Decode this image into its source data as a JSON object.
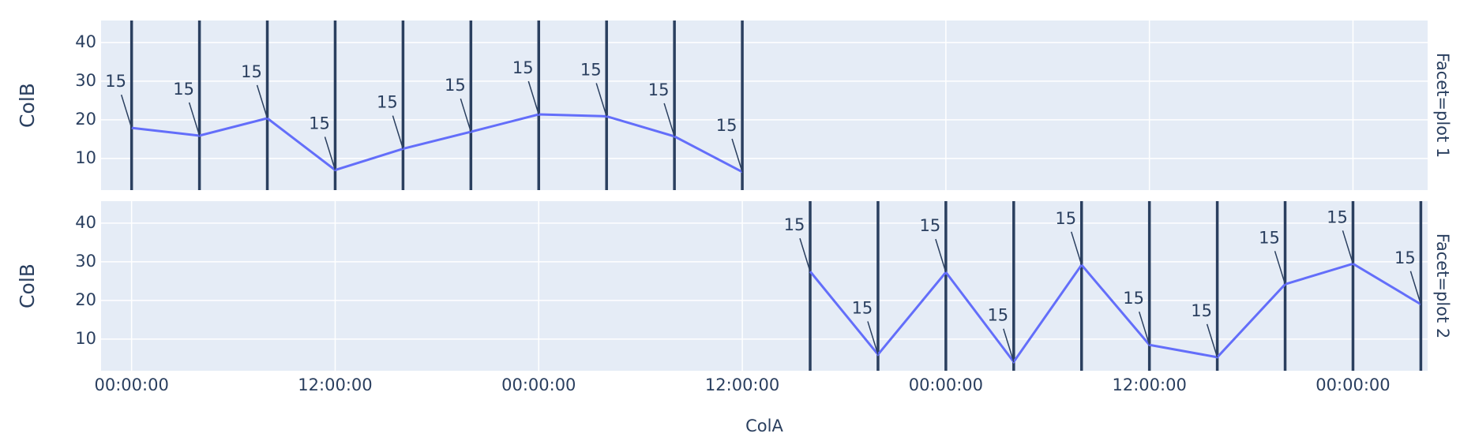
{
  "chart_data": [
    {
      "type": "line",
      "facet": "Facet=plot 1",
      "ylabel": "ColB",
      "x": [
        0,
        4,
        8,
        12,
        16,
        20,
        24,
        28,
        32,
        36
      ],
      "values": [
        17.9,
        15.9,
        20.4,
        7.0,
        12.5,
        16.9,
        21.4,
        20.9,
        15.7,
        6.5
      ],
      "annotations": [
        "15",
        "15",
        "15",
        "15",
        "15",
        "15",
        "15",
        "15",
        "15",
        "15"
      ],
      "color": "#636efa",
      "vline_color": "#2a3f5f",
      "xlim": [
        -1.8,
        76.4
      ],
      "xticks": [
        0,
        12,
        24,
        36,
        48,
        60,
        72
      ],
      "ylim": [
        1.8,
        45.7
      ],
      "yticks": [
        10,
        20,
        30,
        40
      ],
      "grid": true
    },
    {
      "type": "line",
      "facet": "Facet=plot 2",
      "ylabel": "ColB",
      "xlabel": "ColA",
      "x": [
        40,
        44,
        48,
        52,
        56,
        60,
        64,
        68,
        72,
        76
      ],
      "values": [
        27.5,
        6.0,
        27.3,
        4.1,
        29.2,
        8.5,
        5.3,
        24.2,
        29.5,
        19.0
      ],
      "annotations": [
        "15",
        "15",
        "15",
        "15",
        "15",
        "15",
        "15",
        "15",
        "15",
        "15"
      ],
      "color": "#636efa",
      "vline_color": "#2a3f5f",
      "xlim": [
        -1.8,
        76.4
      ],
      "xticks": [
        {
          "value": 0,
          "label": "00:00:00"
        },
        {
          "value": 12,
          "label": "12:00:00"
        },
        {
          "value": 24,
          "label": "00:00:00"
        },
        {
          "value": 36,
          "label": "12:00:00"
        },
        {
          "value": 48,
          "label": "00:00:00"
        },
        {
          "value": 60,
          "label": "12:00:00"
        },
        {
          "value": 72,
          "label": "00:00:00"
        }
      ],
      "ylim": [
        1.8,
        45.7
      ],
      "yticks": [
        10,
        20,
        30,
        40
      ],
      "grid": true
    }
  ]
}
